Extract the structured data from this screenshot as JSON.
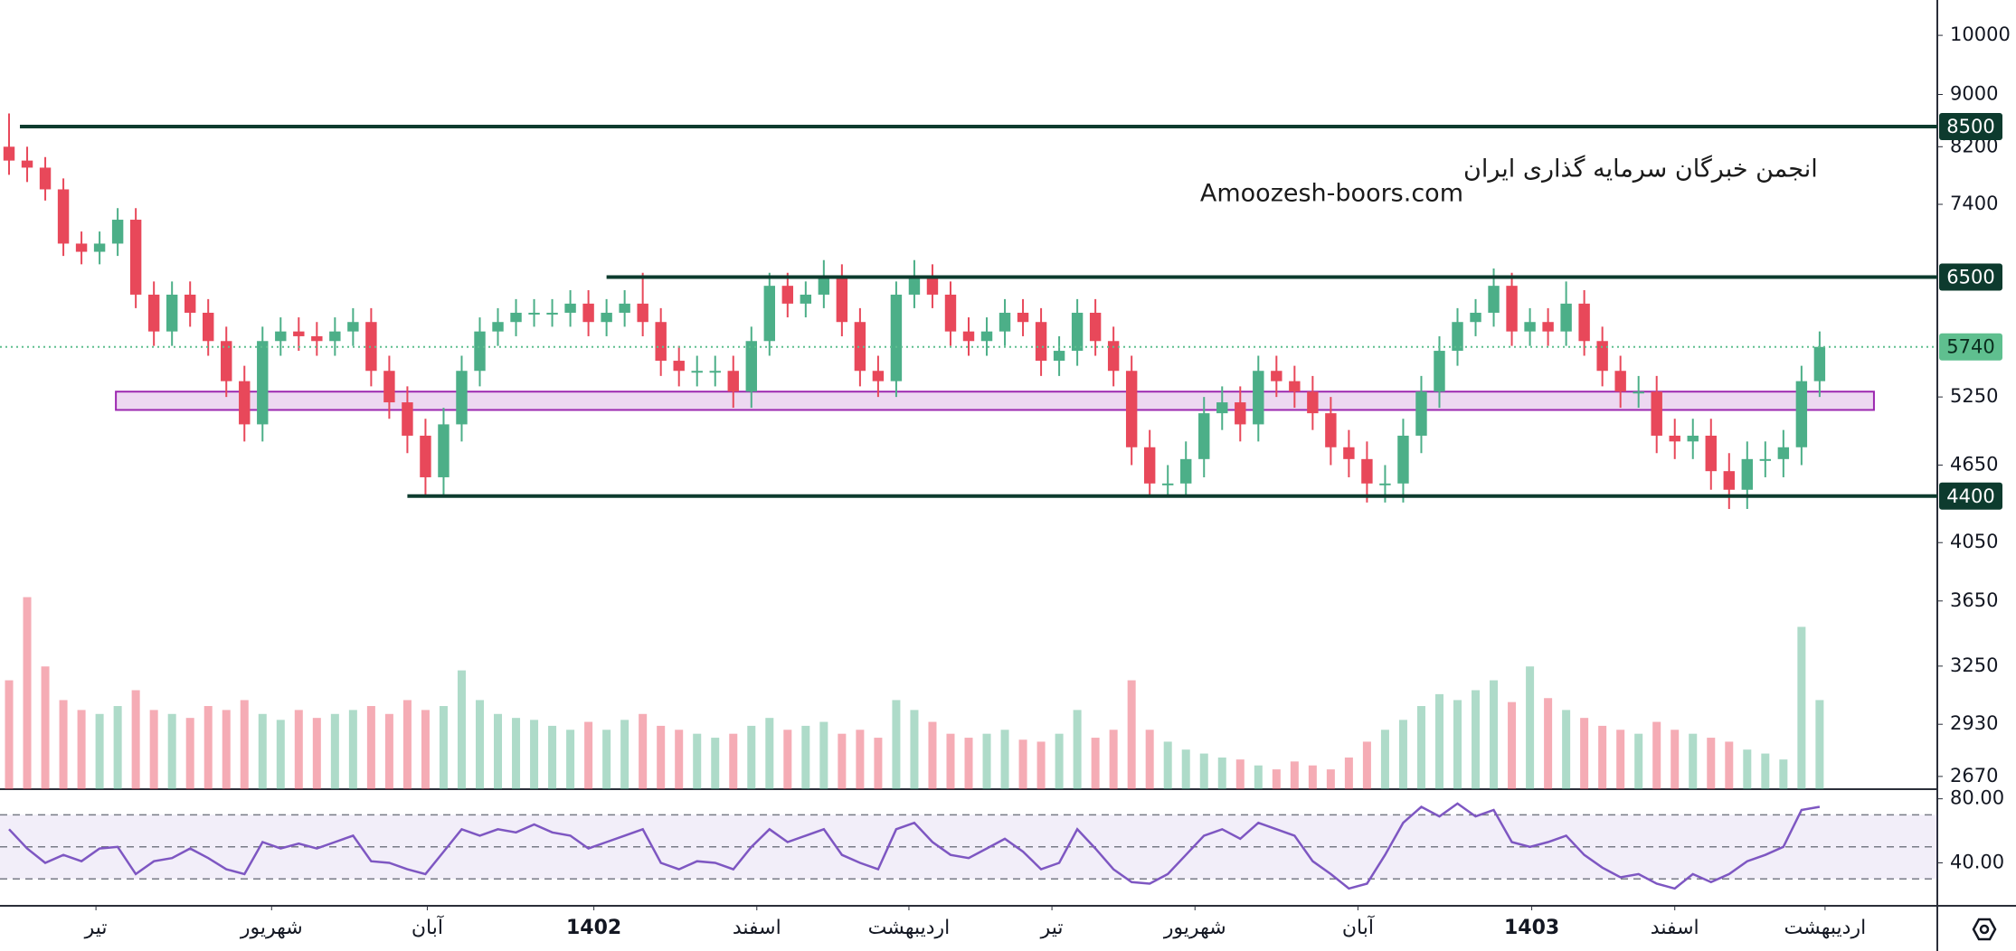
{
  "chart_data": {
    "type": "candlestick",
    "title": "انجمن خبرگان سرمایه گذاری ایران",
    "subtitle": "Amoozesh-boors.com",
    "xlim": [
      0,
      107
    ],
    "xticks": [
      {
        "value": 5.3,
        "label": "تیر"
      },
      {
        "value": 15,
        "label": "شهریور"
      },
      {
        "value": 23.6,
        "label": "آبان"
      },
      {
        "value": 32.8,
        "label": "1402"
      },
      {
        "value": 41.8,
        "label": "اسفند"
      },
      {
        "value": 50.2,
        "label": "اردیبهشت"
      },
      {
        "value": 58.1,
        "label": "تیر"
      },
      {
        "value": 66,
        "label": "شهریور"
      },
      {
        "value": 75,
        "label": "آبان"
      },
      {
        "value": 84.6,
        "label": "1403"
      },
      {
        "value": 92.5,
        "label": "اسفند"
      },
      {
        "value": 100.8,
        "label": "اردیبهشت"
      }
    ],
    "yscale": "log",
    "ylim": [
      2610,
      10650
    ],
    "yticks": [
      10000,
      9000,
      8200,
      7400,
      5250,
      4650,
      4050,
      3650,
      3250,
      2930,
      2670
    ],
    "grid": false,
    "up_color": "#4caf88",
    "down_color": "#e8485a",
    "open": [
      8200,
      8000,
      7900,
      7600,
      6900,
      6800,
      6900,
      7200,
      6300,
      5900,
      6300,
      6100,
      5800,
      5400,
      5000,
      5800,
      5900,
      5850,
      5800,
      5900,
      6000,
      5500,
      5200,
      4900,
      4550,
      5000,
      5500,
      5900,
      6000,
      6100,
      6100,
      6100,
      6200,
      6000,
      6100,
      6200,
      6000,
      5600,
      5500,
      5500,
      5500,
      5300,
      5800,
      6400,
      6200,
      6300,
      6500,
      6000,
      5500,
      5400,
      6300,
      6500,
      6300,
      5900,
      5800,
      5900,
      6100,
      6000,
      5600,
      5700,
      6100,
      5800,
      5500,
      4800,
      4500,
      4500,
      4700,
      5100,
      5200,
      5000,
      5500,
      5400,
      5300,
      5100,
      4800,
      4700,
      4500,
      4500,
      4900,
      5300,
      5700,
      6000,
      6100,
      6400,
      5900,
      6000,
      5900,
      6200,
      5800,
      5500,
      5300,
      5300,
      4900,
      4850,
      4900,
      4600,
      4450,
      4700,
      4700,
      4800,
      5400
    ],
    "high": [
      8700,
      8200,
      8050,
      7750,
      7050,
      7050,
      7350,
      7350,
      6450,
      6450,
      6450,
      6250,
      5950,
      5550,
      5950,
      6050,
      6050,
      6000,
      6050,
      6150,
      6150,
      5650,
      5350,
      5050,
      5150,
      5650,
      6050,
      6150,
      6250,
      6250,
      6250,
      6350,
      6350,
      6250,
      6350,
      6550,
      6150,
      5750,
      5650,
      5650,
      5650,
      5950,
      6550,
      6550,
      6450,
      6700,
      6650,
      6150,
      5650,
      6450,
      6700,
      6650,
      6450,
      6050,
      6050,
      6250,
      6250,
      6150,
      5850,
      6250,
      6250,
      5950,
      5650,
      4950,
      4650,
      4850,
      5250,
      5350,
      5350,
      5650,
      5650,
      5550,
      5450,
      5250,
      4950,
      4850,
      4650,
      5050,
      5450,
      5850,
      6150,
      6250,
      6600,
      6550,
      6150,
      6150,
      6450,
      6350,
      5950,
      5650,
      5450,
      5450,
      5050,
      5050,
      5050,
      4750,
      4850,
      4850,
      4950,
      5550,
      5900
    ],
    "low": [
      7800,
      7700,
      7450,
      6750,
      6650,
      6650,
      6750,
      6150,
      5750,
      5750,
      5950,
      5650,
      5250,
      4850,
      4850,
      5650,
      5700,
      5650,
      5650,
      5750,
      5350,
      5050,
      4750,
      4400,
      4400,
      4850,
      5350,
      5750,
      5850,
      5950,
      5950,
      5950,
      5850,
      5850,
      5950,
      5850,
      5450,
      5350,
      5350,
      5350,
      5150,
      5150,
      5650,
      6050,
      6050,
      6150,
      5850,
      5350,
      5250,
      5250,
      6150,
      6150,
      5750,
      5650,
      5650,
      5750,
      5850,
      5450,
      5450,
      5550,
      5650,
      5350,
      4650,
      4400,
      4400,
      4400,
      4550,
      4950,
      4850,
      4850,
      5250,
      5150,
      4950,
      4650,
      4550,
      4350,
      4350,
      4350,
      4750,
      5150,
      5550,
      5850,
      5950,
      5750,
      5750,
      5750,
      5750,
      5650,
      5350,
      5150,
      5150,
      4750,
      4700,
      4700,
      4450,
      4300,
      4300,
      4550,
      4550,
      4650,
      5250
    ],
    "close": [
      8000,
      7900,
      7600,
      6900,
      6800,
      6900,
      7200,
      6300,
      5900,
      6300,
      6100,
      5800,
      5400,
      5000,
      5800,
      5900,
      5850,
      5800,
      5900,
      6000,
      5500,
      5200,
      4900,
      4550,
      5000,
      5500,
      5900,
      6000,
      6100,
      6100,
      6100,
      6200,
      6000,
      6100,
      6200,
      6000,
      5600,
      5500,
      5500,
      5500,
      5300,
      5800,
      6400,
      6200,
      6300,
      6500,
      6000,
      5500,
      5400,
      6300,
      6500,
      6300,
      5900,
      5800,
      5900,
      6100,
      6000,
      5600,
      5700,
      6100,
      5800,
      5500,
      4800,
      4500,
      4500,
      4700,
      5100,
      5200,
      5000,
      5500,
      5400,
      5300,
      5100,
      4800,
      4700,
      4500,
      4500,
      4900,
      5300,
      5700,
      6000,
      6100,
      6400,
      5900,
      6000,
      5900,
      6200,
      5800,
      5500,
      5300,
      5300,
      4900,
      4850,
      4900,
      4600,
      4450,
      4700,
      4700,
      4800,
      5400,
      5740
    ],
    "volumes": [
      55,
      97,
      62,
      45,
      40,
      38,
      42,
      50,
      40,
      38,
      36,
      42,
      40,
      45,
      38,
      35,
      40,
      36,
      38,
      40,
      42,
      38,
      45,
      40,
      42,
      60,
      45,
      38,
      36,
      35,
      32,
      30,
      34,
      30,
      35,
      38,
      32,
      30,
      28,
      26,
      28,
      32,
      36,
      30,
      32,
      34,
      28,
      30,
      26,
      45,
      40,
      34,
      28,
      26,
      28,
      30,
      25,
      24,
      28,
      40,
      26,
      30,
      55,
      30,
      24,
      20,
      18,
      16,
      15,
      12,
      10,
      14,
      12,
      10,
      16,
      24,
      30,
      35,
      42,
      48,
      45,
      50,
      55,
      44,
      62,
      46,
      40,
      36,
      32,
      30,
      28,
      34,
      30,
      28,
      26,
      24,
      20,
      18,
      15,
      82,
      45
    ],
    "volume_lim": [
      0,
      100
    ],
    "levels": [
      8500,
      6500,
      4400
    ],
    "level_starts": [
      1.1,
      33.5,
      22.5
    ],
    "level_color": "#0d3b2e",
    "last_price": 5740,
    "last_price_color": "#5fbf8f",
    "zone": [
      5130,
      5300
    ],
    "zone_x": [
      6.4,
      103.5
    ],
    "zone_color": "#9c27b0",
    "rsi": {
      "color": "#7e57c2",
      "ylim": [
        13.2,
        86
      ],
      "yticks": [
        {
          "value": 80,
          "label": "80.00"
        },
        {
          "value": 40,
          "label": "40.00"
        }
      ],
      "band": [
        30,
        70
      ],
      "mid": 50,
      "values": [
        61,
        49,
        40,
        45,
        41,
        49,
        50,
        33,
        41,
        43,
        49,
        43,
        36,
        33,
        53,
        49,
        52,
        49,
        53,
        57,
        41,
        40,
        36,
        33,
        47,
        61,
        57,
        61,
        59,
        64,
        59,
        57,
        49,
        53,
        57,
        61,
        40,
        36,
        41,
        40,
        36,
        50,
        61,
        53,
        57,
        61,
        45,
        40,
        36,
        61,
        65,
        53,
        45,
        43,
        49,
        55,
        47,
        36,
        40,
        61,
        49,
        36,
        28,
        27,
        33,
        45,
        57,
        61,
        55,
        65,
        61,
        57,
        41,
        33,
        24,
        27,
        45,
        65,
        75,
        69,
        77,
        69,
        73,
        53,
        50,
        53,
        57,
        45,
        37,
        31,
        33,
        27,
        24,
        33,
        28,
        33,
        41,
        45,
        50,
        73,
        75
      ]
    }
  }
}
